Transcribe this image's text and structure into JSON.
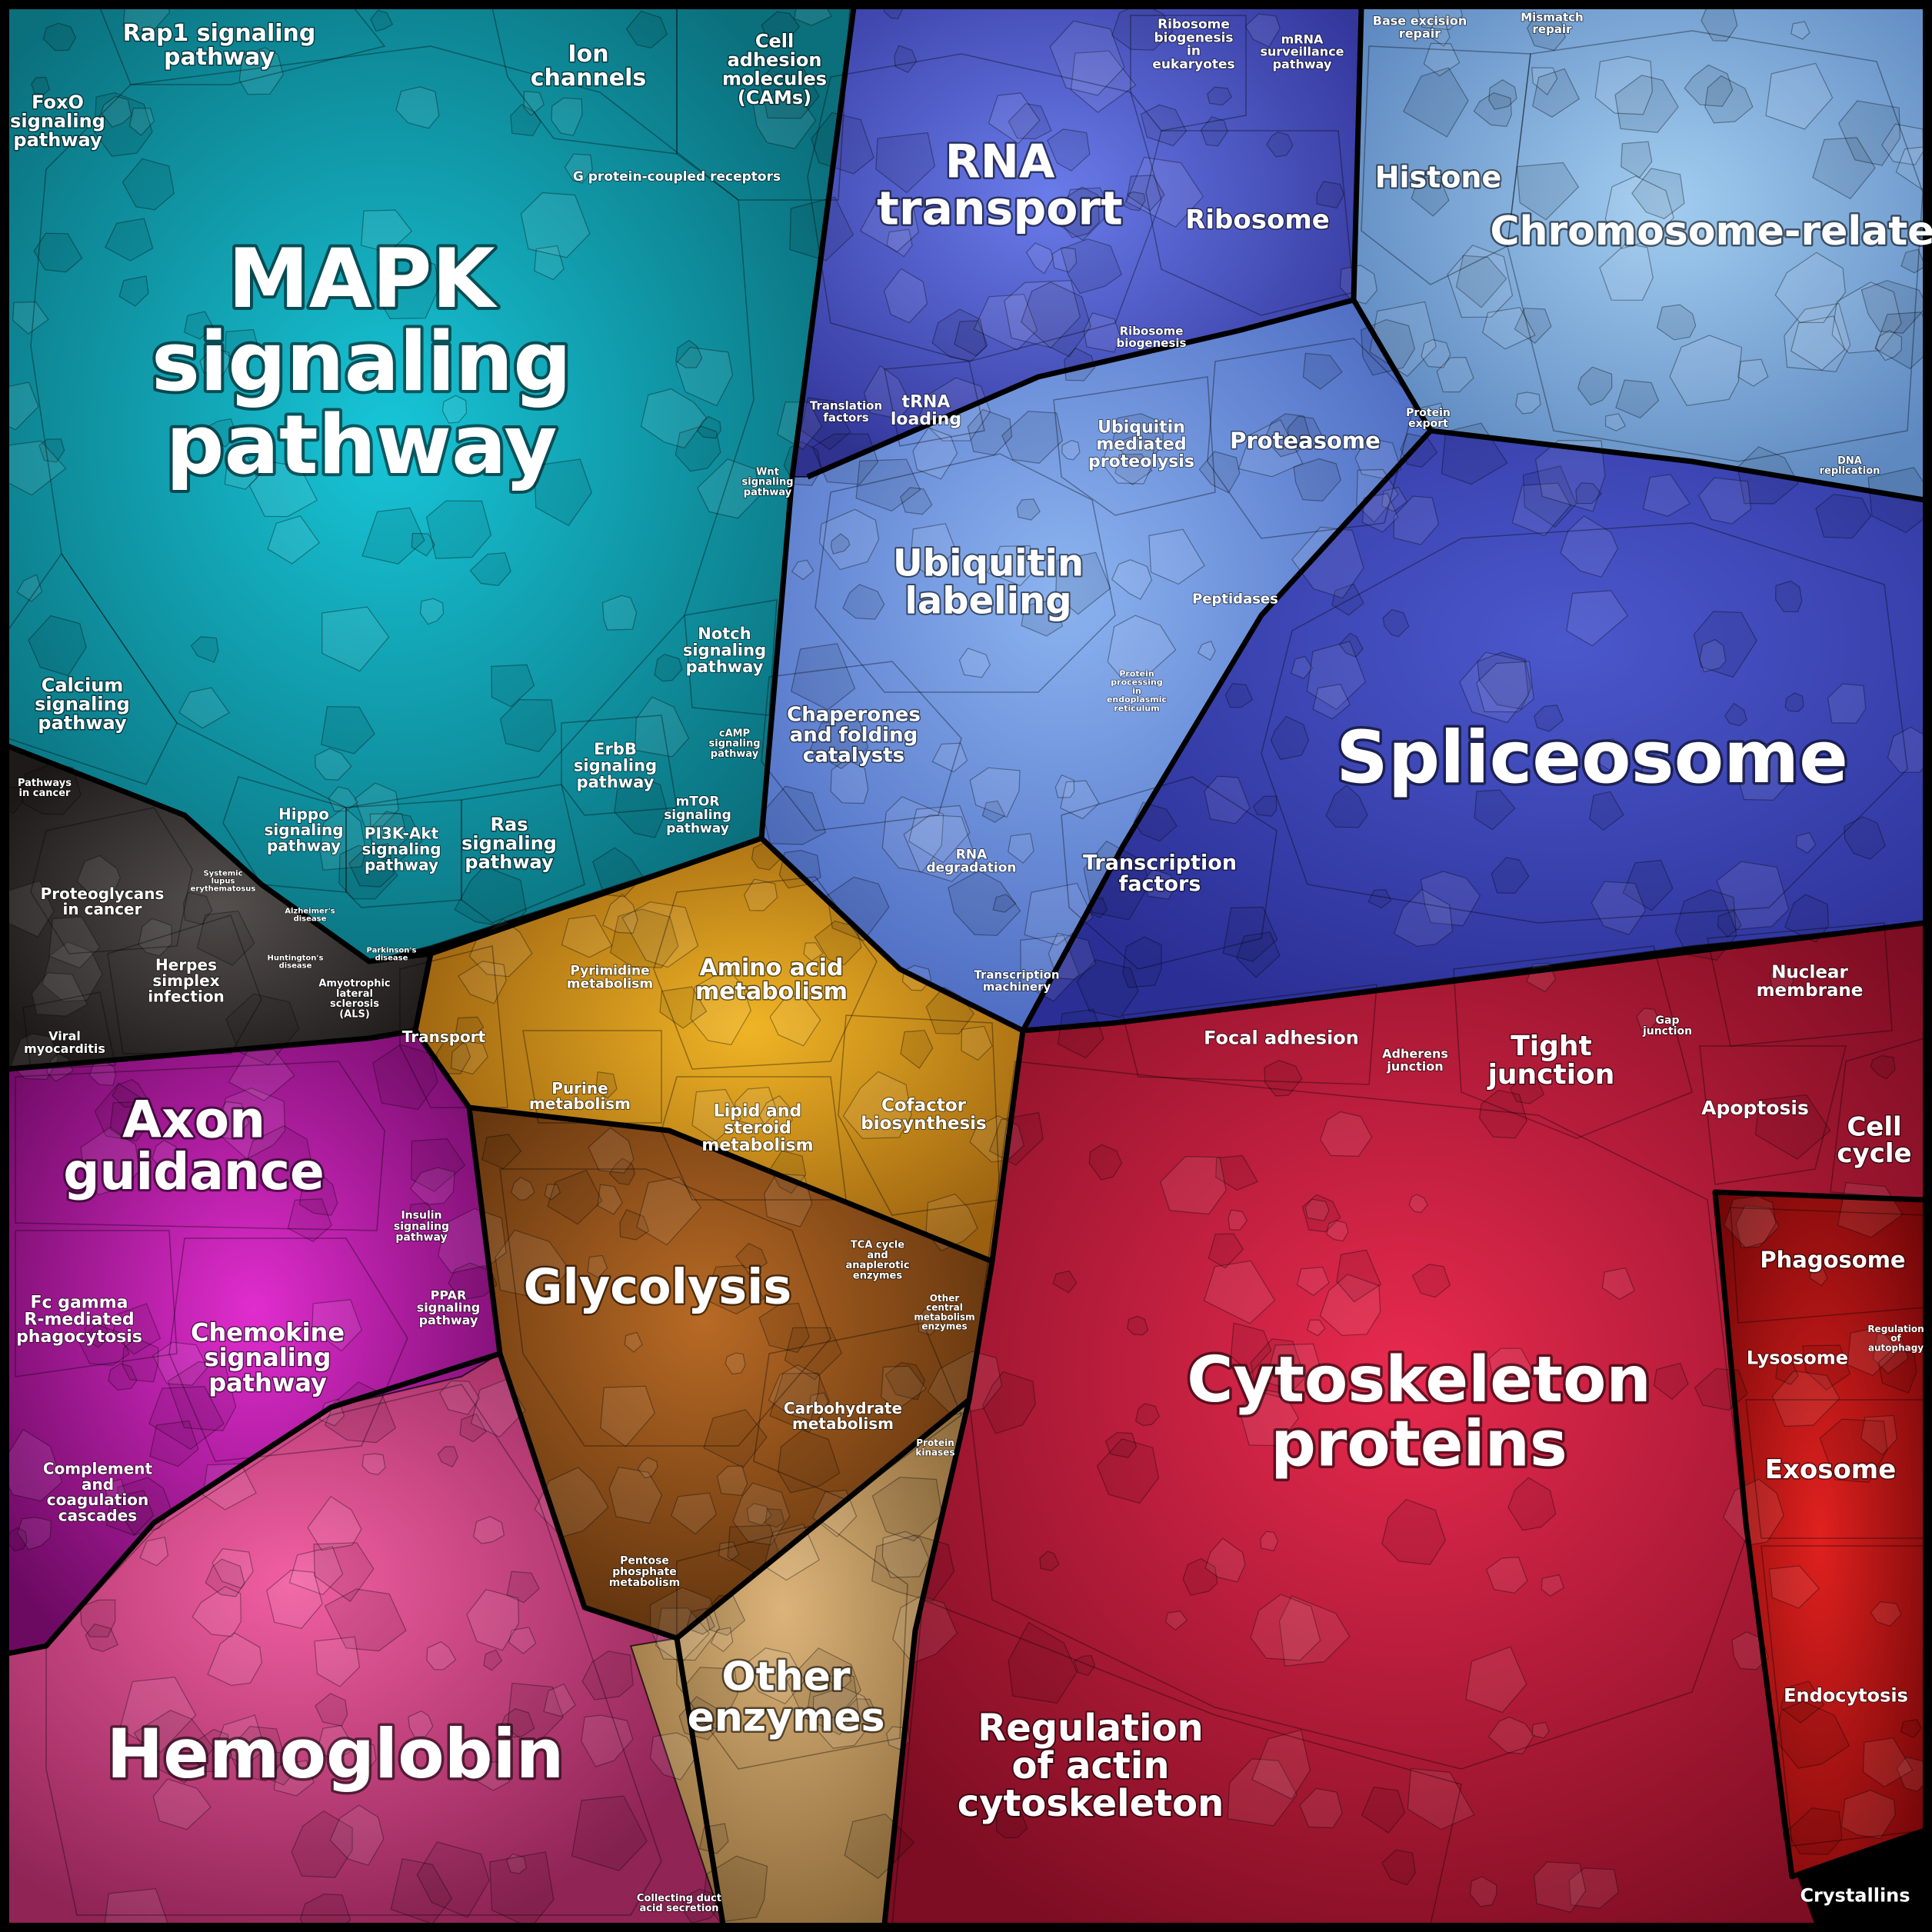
{
  "regions": [
    {
      "id": "signaling",
      "color": "#138f9e",
      "labels": [
        {
          "text": "MAPK signaling pathway"
        },
        {
          "text": "Rap1 signaling pathway"
        },
        {
          "text": "FoxO signaling pathway"
        },
        {
          "text": "Ion channels"
        },
        {
          "text": "Cell adhesion molecules (CAMs)"
        },
        {
          "text": "G protein-coupled receptors"
        },
        {
          "text": "Calcium signaling pathway"
        },
        {
          "text": "Notch signaling pathway"
        },
        {
          "text": "ErbB signaling pathway"
        },
        {
          "text": "Hippo signaling pathway"
        },
        {
          "text": "PI3K-Akt signaling pathway"
        },
        {
          "text": "Ras signaling pathway"
        },
        {
          "text": "mTOR signaling pathway"
        },
        {
          "text": "cAMP signaling pathway"
        },
        {
          "text": "Wnt signaling pathway"
        }
      ]
    },
    {
      "id": "disease",
      "color": "#3a3534",
      "labels": [
        {
          "text": "Proteoglycans in cancer"
        },
        {
          "text": "Pathways in cancer"
        },
        {
          "text": "Herpes simplex infection"
        },
        {
          "text": "Viral myocarditis"
        },
        {
          "text": "Systemic lupus erythematosus"
        },
        {
          "text": "Alzheimer's disease"
        },
        {
          "text": "Huntington's disease"
        },
        {
          "text": "Parkinson's disease"
        },
        {
          "text": "Amyotrophic lateral sclerosis (ALS)"
        }
      ]
    },
    {
      "id": "genetic",
      "color": "#4b57c4",
      "labels": [
        {
          "text": "RNA transport"
        },
        {
          "text": "Ribosome"
        },
        {
          "text": "Ribosome biogenesis in eukaryotes"
        },
        {
          "text": "mRNA surveillance pathway"
        },
        {
          "text": "Ribosome biogenesis"
        },
        {
          "text": "Translation factors"
        },
        {
          "text": "tRNA loading"
        }
      ]
    },
    {
      "id": "chromosome",
      "color": "#6e9fd0",
      "labels": [
        {
          "text": "Chromosome-related"
        },
        {
          "text": "Histone"
        },
        {
          "text": "Base excision repair"
        },
        {
          "text": "Mismatch repair"
        },
        {
          "text": "DNA replication"
        },
        {
          "text": "Protein export"
        }
      ]
    },
    {
      "id": "protein",
      "color": "#5a86d2",
      "labels": [
        {
          "text": "Ubiquitin labeling"
        },
        {
          "text": "Ubiquitin mediated proteolysis"
        },
        {
          "text": "Proteasome"
        },
        {
          "text": "Peptidases"
        },
        {
          "text": "Chaperones and folding catalysts"
        },
        {
          "text": "RNA degradation"
        },
        {
          "text": "Protein processing in endoplasmic reticulum"
        }
      ]
    },
    {
      "id": "splice",
      "color": "#3b48b8",
      "labels": [
        {
          "text": "Spliceosome"
        },
        {
          "text": "Transcription factors"
        },
        {
          "text": "Transcription machinery"
        }
      ]
    },
    {
      "id": "metabolism",
      "color": "#c98a16",
      "labels": [
        {
          "text": "Amino acid metabolism"
        },
        {
          "text": "Pyrimidine metabolism"
        },
        {
          "text": "Purine metabolism"
        },
        {
          "text": "Lipid and steroid metabolism"
        },
        {
          "text": "Cofactor biosynthesis"
        },
        {
          "text": "Transport"
        }
      ]
    },
    {
      "id": "carb",
      "color": "#8b4f14",
      "labels": [
        {
          "text": "Glycolysis"
        },
        {
          "text": "TCA cycle and anaplerotic enzymes"
        },
        {
          "text": "Other central metabolism enzymes"
        },
        {
          "text": "Carbohydrate metabolism"
        },
        {
          "text": "Pentose phosphate metabolism"
        },
        {
          "text": "Protein kinases"
        }
      ]
    },
    {
      "id": "enzymes",
      "color": "#b5915a",
      "labels": [
        {
          "text": "Other enzymes"
        },
        {
          "text": "Collecting duct acid secretion"
        }
      ]
    },
    {
      "id": "immune",
      "color": "#b5119f",
      "labels": [
        {
          "text": "Axon guidance"
        },
        {
          "text": "Fc gamma R-mediated phagocytosis"
        },
        {
          "text": "Chemokine signaling pathway"
        },
        {
          "text": "Complement and coagulation cascades"
        },
        {
          "text": "Insulin signaling pathway"
        },
        {
          "text": "PPAR signaling pathway"
        }
      ]
    },
    {
      "id": "blood",
      "color": "#c23a79",
      "labels": [
        {
          "text": "Hemoglobin"
        }
      ]
    },
    {
      "id": "cellular",
      "color": "#c01a38",
      "labels": [
        {
          "text": "Cytoskeleton proteins"
        },
        {
          "text": "Regulation of actin cytoskeleton"
        },
        {
          "text": "Focal adhesion"
        },
        {
          "text": "Adherens junction"
        },
        {
          "text": "Tight junction"
        },
        {
          "text": "Gap junction"
        },
        {
          "text": "Nuclear membrane"
        },
        {
          "text": "Apoptosis"
        },
        {
          "text": "Cell cycle"
        }
      ]
    },
    {
      "id": "vesicle",
      "color": "#a80f14",
      "labels": [
        {
          "text": "Phagosome"
        },
        {
          "text": "Lysosome"
        },
        {
          "text": "Regulation of autophagy"
        },
        {
          "text": "Exosome"
        },
        {
          "text": "Endocytosis"
        },
        {
          "text": "Crystallins"
        }
      ]
    }
  ]
}
